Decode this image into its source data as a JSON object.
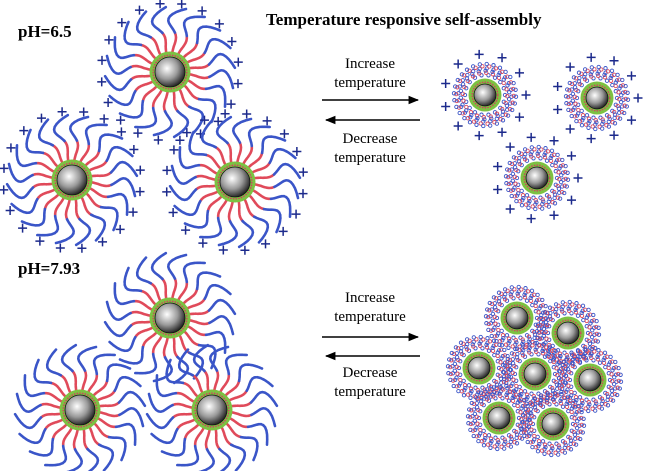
{
  "title": "Temperature responsive self-assembly",
  "panels": [
    {
      "ph_label": "pH=6.5",
      "forward_label": [
        "Increase",
        "temperature"
      ],
      "reverse_label": [
        "Decrease",
        "temperature"
      ],
      "charged": true
    },
    {
      "ph_label": "pH=7.93",
      "forward_label": [
        "Increase",
        "temperature"
      ],
      "reverse_label": [
        "Decrease",
        "temperature"
      ],
      "charged": false
    }
  ],
  "colors": {
    "core_dark": "#2a2a2a",
    "core_light": "#ffffff",
    "inner_ring": "#d04060",
    "green_shell": "#7cc142",
    "chain_red": "#e04a5a",
    "chain_blue": "#3a55c8",
    "charge": "#1c2a8c"
  }
}
